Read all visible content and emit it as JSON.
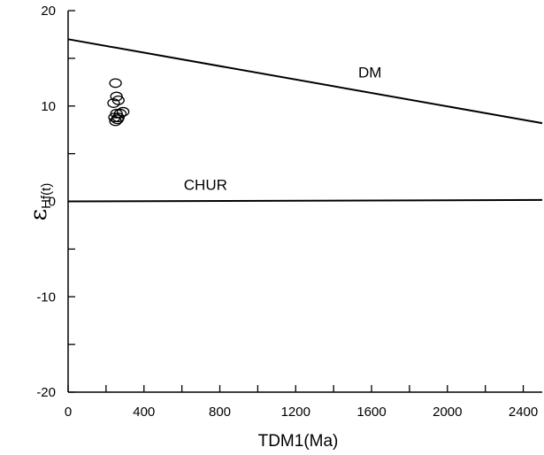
{
  "chart_data": {
    "type": "scatter",
    "xlabel": "TDM1(Ma)",
    "ylabel": {
      "main": "ε",
      "sub": "Hf(t)"
    },
    "xlim": [
      0,
      2500
    ],
    "ylim": [
      -20,
      20
    ],
    "x_ticks": [
      0,
      400,
      800,
      1200,
      1600,
      2000,
      2400
    ],
    "x_minor_ticks": [
      200,
      600,
      1000,
      1400,
      1800,
      2200
    ],
    "y_ticks": [
      -20,
      -10,
      0,
      10,
      20
    ],
    "y_minor_ticks": [
      -15,
      -5,
      5,
      15
    ],
    "marker": "open-ellipse",
    "grid": false,
    "reference_lines": [
      {
        "name": "DM",
        "x": [
          0,
          2500
        ],
        "y": [
          17.0,
          8.2
        ],
        "label_at": [
          1530,
          13.0
        ]
      },
      {
        "name": "CHUR",
        "x": [
          0,
          2500
        ],
        "y": [
          0.0,
          0.15
        ],
        "label_at": [
          610,
          1.2
        ]
      }
    ],
    "points": [
      {
        "x": 250,
        "y": 12.4
      },
      {
        "x": 255,
        "y": 11.0
      },
      {
        "x": 265,
        "y": 10.6
      },
      {
        "x": 240,
        "y": 10.3
      },
      {
        "x": 255,
        "y": 9.2
      },
      {
        "x": 290,
        "y": 9.4
      },
      {
        "x": 275,
        "y": 9.2
      },
      {
        "x": 245,
        "y": 8.8
      },
      {
        "x": 265,
        "y": 8.8
      },
      {
        "x": 250,
        "y": 8.4
      },
      {
        "x": 260,
        "y": 8.6
      }
    ]
  }
}
